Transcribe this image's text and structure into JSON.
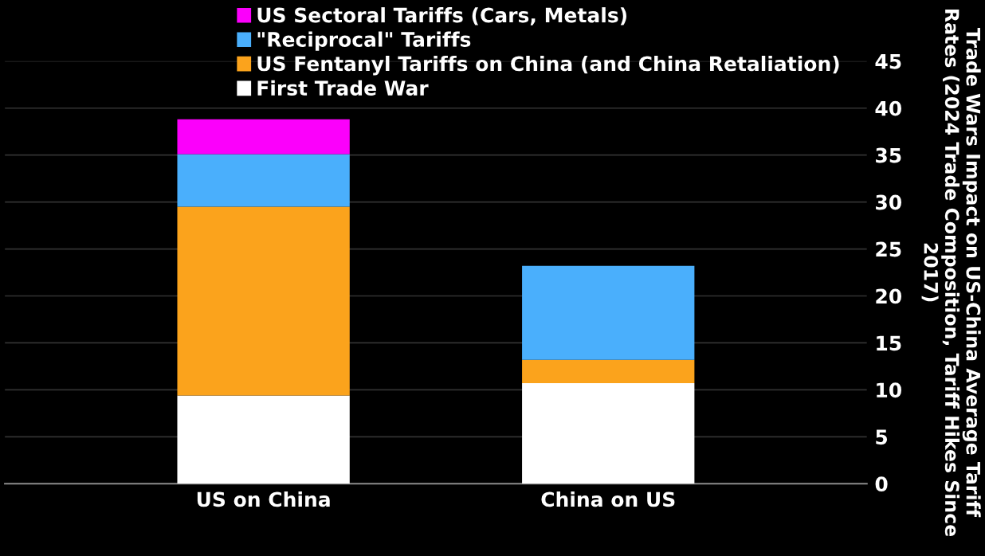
{
  "chart_data": {
    "type": "bar",
    "stacked": true,
    "categories": [
      "US on China",
      "China on US"
    ],
    "series": [
      {
        "name": "First Trade War",
        "color": "#ffffff",
        "values": [
          9.4,
          10.7
        ]
      },
      {
        "name": "US Fentanyl Tariffs on China (and China Retaliation)",
        "color": "#fba31c",
        "values": [
          20.1,
          2.5
        ]
      },
      {
        "name": "\"Reciprocal\" Tariffs",
        "color": "#4aaffc",
        "values": [
          5.6,
          10.0
        ]
      },
      {
        "name": "US Sectoral Tariffs (Cars, Metals)",
        "color": "#fb00fb",
        "values": [
          3.7,
          0
        ]
      }
    ],
    "ylabel": "Trade Wars Impact on US-China Average Tariff Rates (2024 Trade Composition, Tariff Hikes Since 2017)",
    "ylim": [
      0,
      45
    ],
    "yticks": [
      0,
      5,
      10,
      15,
      20,
      25,
      30,
      35,
      40,
      45
    ],
    "grid": "y",
    "legend": "top"
  }
}
